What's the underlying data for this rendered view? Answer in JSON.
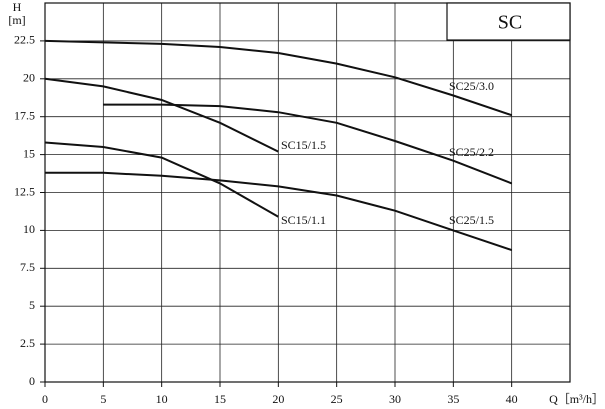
{
  "chart_data": {
    "type": "line",
    "title": "SC",
    "y_label": "H",
    "y_unit": "[m]",
    "x_label": "Q［m³/h］",
    "xlim": [
      0,
      45
    ],
    "ylim": [
      0,
      25
    ],
    "xticks": [
      0,
      5,
      10,
      15,
      20,
      25,
      30,
      35,
      40
    ],
    "yticks": [
      0,
      2.5,
      5,
      7.5,
      10,
      12.5,
      15,
      17.5,
      20,
      22.5
    ],
    "grid": true,
    "color": "#111111",
    "series": [
      {
        "name": "SC25/3.0",
        "color": "#111111",
        "x": [
          0,
          5,
          10,
          15,
          20,
          25,
          30,
          35,
          40
        ],
        "values": [
          22.5,
          22.4,
          22.3,
          22.1,
          21.7,
          21.0,
          20.1,
          18.9,
          17.6
        ]
      },
      {
        "name": "SC15/1.5",
        "color": "#111111",
        "x": [
          0,
          5,
          10,
          15,
          20
        ],
        "values": [
          20.0,
          19.5,
          18.6,
          17.1,
          15.2
        ]
      },
      {
        "name": "SC25/2.2",
        "color": "#111111",
        "x": [
          5,
          10,
          15,
          20,
          25,
          30,
          35,
          40
        ],
        "values": [
          18.3,
          18.3,
          18.2,
          17.8,
          17.1,
          15.9,
          14.6,
          13.1
        ]
      },
      {
        "name": "SC15/1.1",
        "color": "#111111",
        "x": [
          0,
          5,
          10,
          15,
          20
        ],
        "values": [
          15.8,
          15.5,
          14.8,
          13.1,
          10.9
        ]
      },
      {
        "name": "SC25/1.5",
        "color": "#111111",
        "x": [
          0,
          5,
          10,
          15,
          20,
          25,
          30,
          35,
          40
        ],
        "values": [
          13.8,
          13.8,
          13.6,
          13.3,
          12.9,
          12.3,
          11.3,
          10.0,
          8.7
        ]
      }
    ]
  }
}
